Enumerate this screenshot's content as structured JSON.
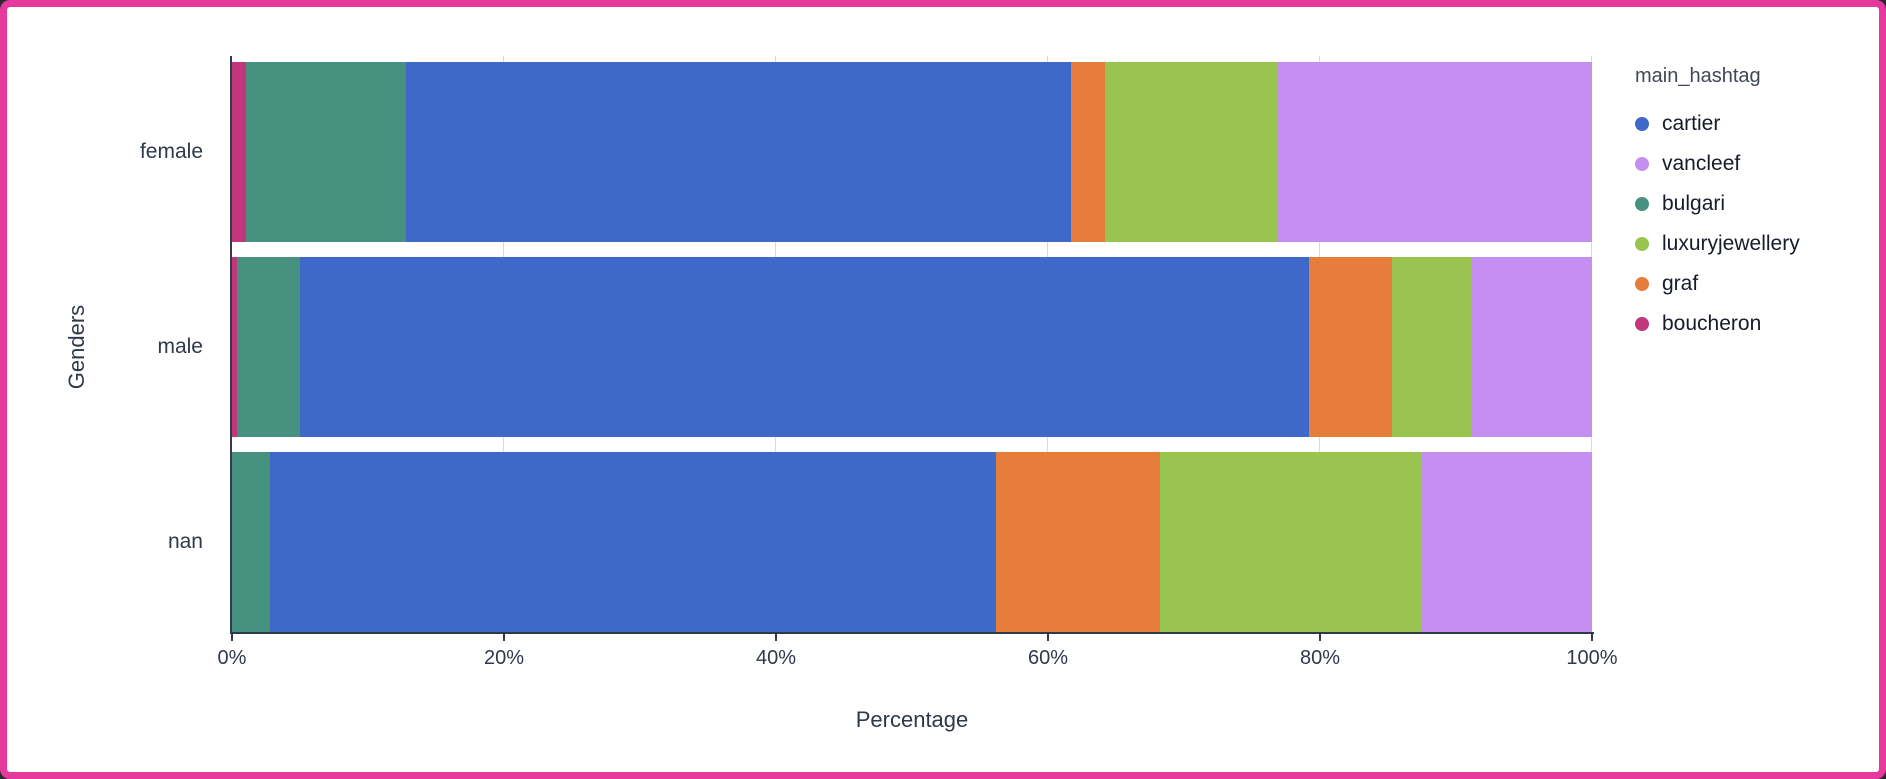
{
  "frame": {
    "border_color": "#e6399e",
    "background": "#ffffff"
  },
  "chart_data": {
    "type": "bar",
    "orientation": "horizontal",
    "stacked": true,
    "title": "",
    "xlabel": "Percentage",
    "ylabel": "Genders",
    "legend_title": "main_hashtag",
    "legend_position": "right",
    "grid": true,
    "xlim": [
      0,
      100
    ],
    "xticks": [
      "0%",
      "20%",
      "40%",
      "60%",
      "80%",
      "100%"
    ],
    "categories": [
      "female",
      "male",
      "nan"
    ],
    "series": [
      {
        "name": "boucheron",
        "color": "#c2367b",
        "values": [
          1.0,
          0.4,
          0.0
        ]
      },
      {
        "name": "bulgari",
        "color": "#479181",
        "values": [
          11.8,
          4.6,
          2.8
        ]
      },
      {
        "name": "cartier",
        "color": "#3e69c8",
        "values": [
          48.9,
          74.2,
          53.4
        ]
      },
      {
        "name": "graf",
        "color": "#e77d3b",
        "values": [
          2.5,
          6.1,
          12.0
        ]
      },
      {
        "name": "luxuryjewellery",
        "color": "#99c450",
        "values": [
          12.7,
          5.8,
          19.3
        ]
      },
      {
        "name": "vancleef",
        "color": "#c48ff0",
        "values": [
          23.1,
          8.9,
          12.5
        ]
      }
    ],
    "legend_order": [
      "cartier",
      "vancleef",
      "bulgari",
      "luxuryjewellery",
      "graf",
      "boucheron"
    ]
  }
}
